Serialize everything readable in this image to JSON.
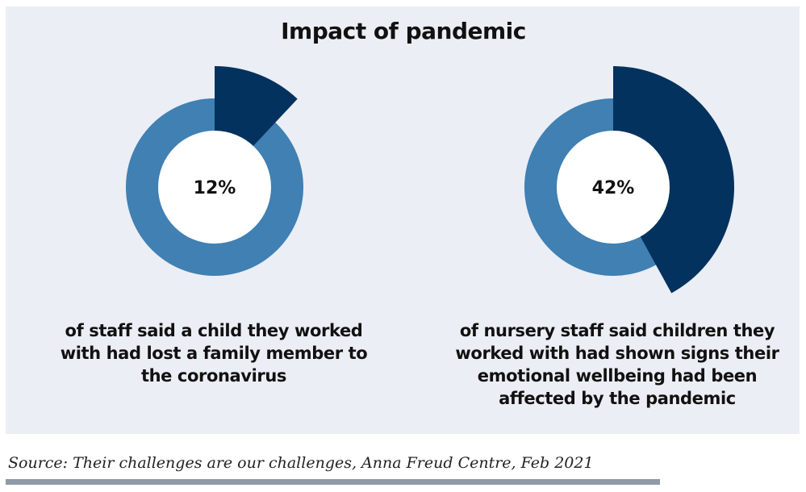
{
  "title": "Impact of pandemic",
  "chart_data": [
    {
      "type": "pie",
      "title": "",
      "values": [
        12,
        88
      ],
      "center_label": "12%",
      "caption": "of staff said a child they worked with had lost a family member to the coronavirus",
      "caption_lines": [
        "of staff said a child they worked",
        "with had lost a family member to",
        "the coronavirus"
      ],
      "colors": {
        "highlight": "#04325e",
        "rest": "#4080b3"
      }
    },
    {
      "type": "pie",
      "title": "",
      "values": [
        42,
        58
      ],
      "center_label": "42%",
      "caption": "of nursery staff said children they worked with had shown signs their emotional wellbeing had been affected by the pandemic",
      "caption_lines": [
        "of nursery staff said children they",
        "worked with had shown signs their",
        "emotional wellbeing had been",
        "affected by the pandemic"
      ],
      "colors": {
        "highlight": "#04325e",
        "rest": "#4080b3"
      }
    }
  ],
  "source": "Source: Their challenges are our challenges, Anna Freud Centre, Feb 2021",
  "colors": {
    "background_panel": "#ebeef4",
    "rule": "#8e9aa8"
  }
}
